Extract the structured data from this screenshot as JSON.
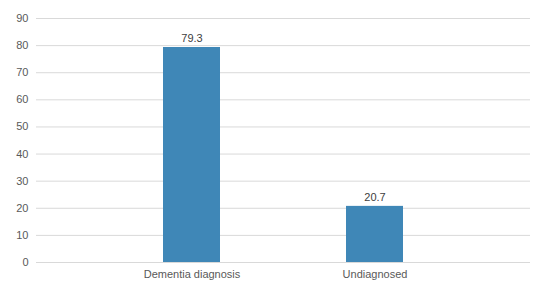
{
  "chart_data": {
    "type": "bar",
    "categories": [
      "Dementia diagnosis",
      "Undiagnosed"
    ],
    "values": [
      79.3,
      20.7
    ],
    "color": "#3f87b7",
    "ylim": [
      0,
      90
    ],
    "yticks": [
      0,
      10,
      20,
      30,
      40,
      50,
      60,
      70,
      80,
      90
    ],
    "grid": true,
    "data_labels": true
  }
}
